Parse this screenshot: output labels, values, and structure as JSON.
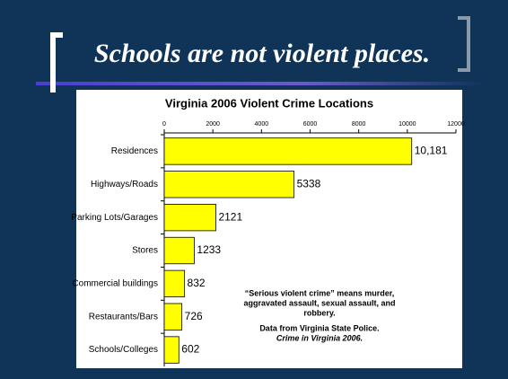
{
  "slide": {
    "title": "Schools are not violent places."
  },
  "chart_data": {
    "type": "bar",
    "orientation": "horizontal",
    "title": "Virginia 2006 Violent Crime Locations",
    "categories": [
      "Residences",
      "Highways/Roads",
      "Parking Lots/Garages",
      "Stores",
      "Commercial buildings",
      "Restaurants/Bars",
      "Schools/Colleges"
    ],
    "values": [
      10181,
      5338,
      2121,
      1233,
      832,
      726,
      602
    ],
    "value_labels": [
      "10,181",
      "5338",
      "2121",
      "1233",
      "832",
      "726",
      "602"
    ],
    "color": "#ffff00",
    "xlim": [
      0,
      12000
    ],
    "xticks": [
      0,
      2000,
      4000,
      6000,
      8000,
      10000,
      12000
    ],
    "annotations": [
      {
        "lines": [
          "“Serious violent crime” means murder,",
          "aggravated assault, sexual assault, and",
          "robbery."
        ]
      },
      {
        "lines": [
          "Data from Virginia State Police."
        ]
      },
      {
        "lines": [
          "Crime in Virginia 2006."
        ],
        "italic": true
      }
    ]
  }
}
